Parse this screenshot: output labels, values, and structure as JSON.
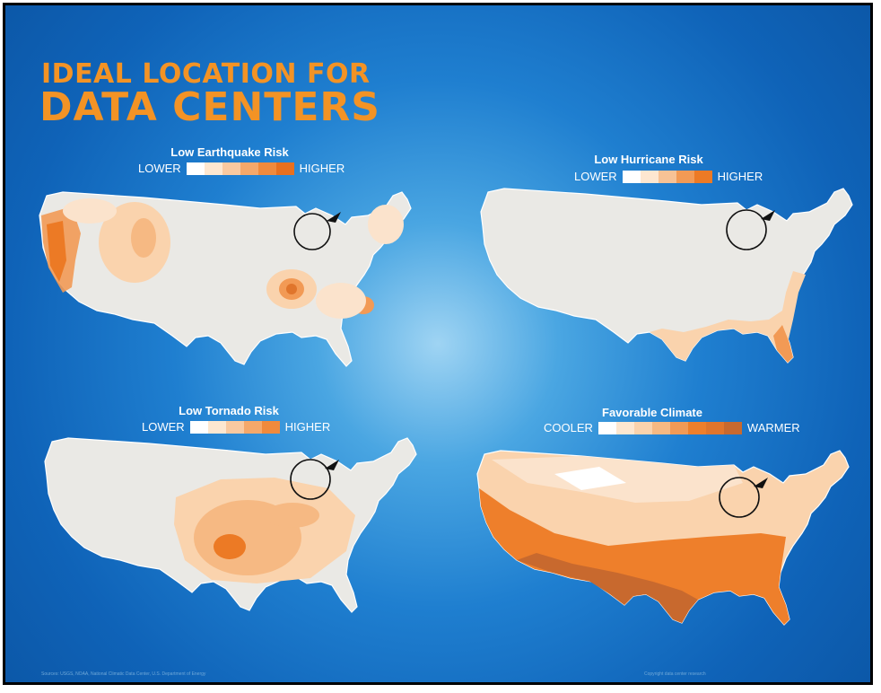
{
  "title": {
    "line1": "IDEAL LOCATION FOR",
    "line2": "DATA CENTERS"
  },
  "colors": {
    "accent": "#f39325",
    "background": "#1f7fd0",
    "land": "#e9e8e4",
    "low": "#fbe3cc",
    "mid": "#f6b983",
    "high": "#ef7d25",
    "highest": "#c8692e"
  },
  "panels": [
    {
      "title": "Low Earthquake Risk",
      "scale_low": "LOWER",
      "scale_high": "HIGHER",
      "swatches": [
        "#ffffff",
        "#fde7d0",
        "#f9c9a0",
        "#f5a86a",
        "#f08a3c",
        "#e8701f"
      ]
    },
    {
      "title": "Low Hurricane Risk",
      "scale_low": "LOWER",
      "scale_high": "HIGHER",
      "swatches": [
        "#ffffff",
        "#fde7d0",
        "#f7c295",
        "#f29a55",
        "#ec7a25"
      ]
    },
    {
      "title": "Low Tornado Risk",
      "scale_low": "LOWER",
      "scale_high": "HIGHER",
      "swatches": [
        "#ffffff",
        "#fde7d0",
        "#f9c9a0",
        "#f5a86a",
        "#f08a3c"
      ]
    },
    {
      "title": "Favorable Climate",
      "scale_low": "COOLER",
      "scale_high": "WARMER",
      "swatches": [
        "#ffffff",
        "#fde7d0",
        "#fad3ad",
        "#f6b983",
        "#f29a55",
        "#ee7f2b",
        "#e0752c",
        "#c8692e"
      ]
    }
  ],
  "marker": {
    "name": "Michigan highlight"
  },
  "footnotes": {
    "left": "Sources: USGS, NOAA, National Climatic Data Center, U.S. Department of Energy",
    "right": "Copyright data center research"
  }
}
